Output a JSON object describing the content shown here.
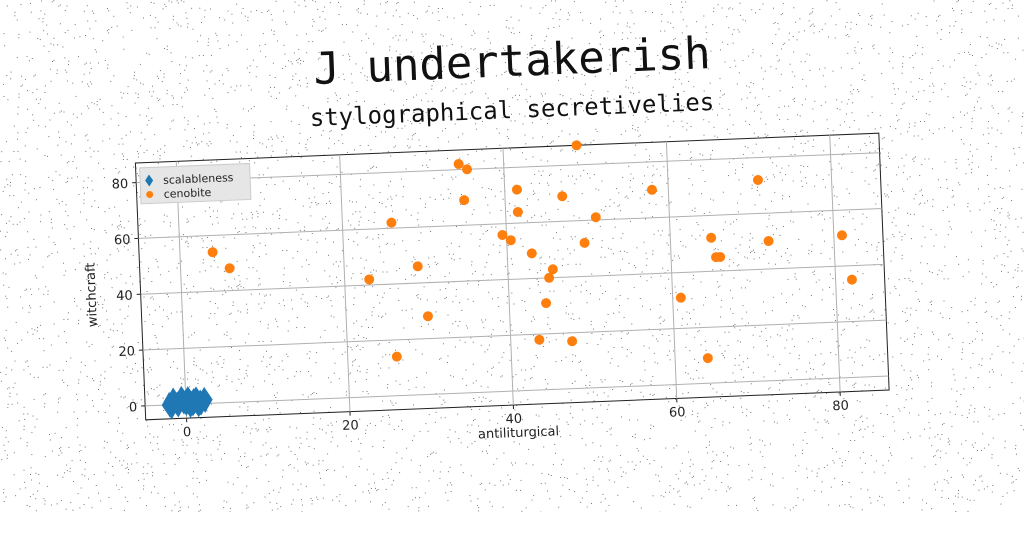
{
  "chart_data": {
    "type": "scatter",
    "title": "J undertakerish",
    "subtitle": "stylographical secretivelies",
    "xlabel": "antiliturgical",
    "ylabel": "witchcraft",
    "xlim": [
      -5,
      86
    ],
    "ylim": [
      -5,
      87
    ],
    "xticks": [
      0,
      20,
      40,
      60,
      80
    ],
    "yticks": [
      0,
      20,
      40,
      60,
      80
    ],
    "grid": true,
    "legend_position": "top-left",
    "series": [
      {
        "name": "scalableness",
        "marker": "diamond",
        "color": "#1f77b4",
        "points": [
          [
            -2,
            0
          ],
          [
            -1.5,
            1.5
          ],
          [
            -1,
            0
          ],
          [
            -0.5,
            2
          ],
          [
            0,
            0.5
          ],
          [
            0.3,
            1.8
          ],
          [
            0.8,
            0.2
          ],
          [
            1.3,
            1.6
          ],
          [
            1.8,
            0.4
          ],
          [
            2.3,
            1.3
          ],
          [
            -1.8,
            -0.5
          ],
          [
            0.5,
            -0.3
          ],
          [
            1.5,
            -0.2
          ],
          [
            -0.3,
            1
          ],
          [
            1,
            1
          ]
        ]
      },
      {
        "name": "cenobite",
        "marker": "circle",
        "color": "#ff7f0e",
        "points": [
          [
            4,
            54
          ],
          [
            6,
            48
          ],
          [
            23,
            42
          ],
          [
            26,
            62
          ],
          [
            26,
            14
          ],
          [
            29,
            46
          ],
          [
            30,
            28
          ],
          [
            34.5,
            82
          ],
          [
            35.5,
            80
          ],
          [
            35,
            69
          ],
          [
            39.5,
            56
          ],
          [
            40.5,
            54
          ],
          [
            41.5,
            72
          ],
          [
            41.5,
            64
          ],
          [
            43,
            49
          ],
          [
            43.5,
            18
          ],
          [
            44.5,
            31
          ],
          [
            45,
            40
          ],
          [
            45.5,
            43
          ],
          [
            47,
            69
          ],
          [
            47.5,
            17
          ],
          [
            49,
            87
          ],
          [
            49.5,
            52
          ],
          [
            51,
            61
          ],
          [
            58,
            70
          ],
          [
            61,
            31
          ],
          [
            64,
            9
          ],
          [
            65,
            52
          ],
          [
            65.5,
            45
          ],
          [
            66,
            45
          ],
          [
            71,
            72
          ],
          [
            72,
            50
          ],
          [
            81,
            51
          ],
          [
            82,
            35
          ]
        ]
      }
    ]
  }
}
